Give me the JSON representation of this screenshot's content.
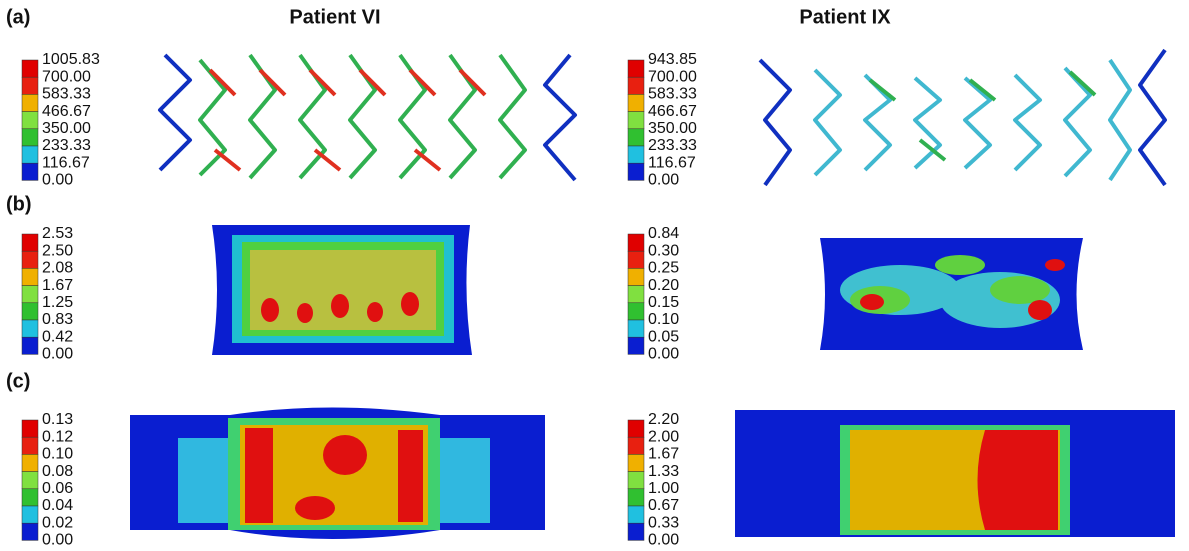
{
  "columns": [
    "Patient VI",
    "Patient IX"
  ],
  "panel_labels": [
    "(a)",
    "(b)",
    "(c)"
  ],
  "legends": [
    [
      [
        "1005.83",
        "700.00",
        "583.33",
        "466.67",
        "350.00",
        "233.33",
        "116.67",
        "0.00"
      ],
      [
        "943.85",
        "700.00",
        "583.33",
        "466.67",
        "350.00",
        "233.33",
        "116.67",
        "0.00"
      ]
    ],
    [
      [
        "2.53",
        "2.50",
        "2.08",
        "1.67",
        "1.25",
        "0.83",
        "0.42",
        "0.00"
      ],
      [
        "0.84",
        "0.30",
        "0.25",
        "0.20",
        "0.15",
        "0.10",
        "0.05",
        "0.00"
      ]
    ],
    [
      [
        "0.13",
        "0.12",
        "0.10",
        "0.08",
        "0.06",
        "0.04",
        "0.02",
        "0.00"
      ],
      [
        "2.20",
        "2.00",
        "1.67",
        "1.33",
        "1.00",
        "0.67",
        "0.33",
        "0.00"
      ]
    ]
  ]
}
